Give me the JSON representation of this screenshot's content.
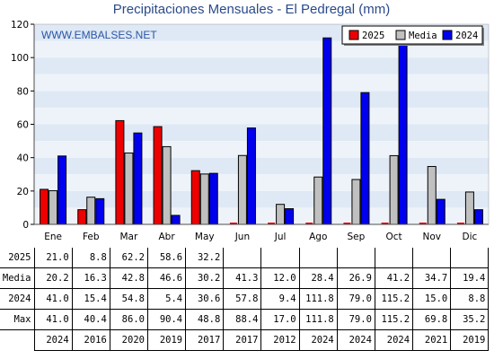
{
  "title": "Precipitaciones Mensuales - El Pedregal (mm)",
  "watermark": "WWW.EMBALSES.NET",
  "chart_data": {
    "type": "bar",
    "categories": [
      "Ene",
      "Feb",
      "Mar",
      "Abr",
      "May",
      "Jun",
      "Jul",
      "Ago",
      "Sep",
      "Oct",
      "Nov",
      "Dic"
    ],
    "ylim": [
      0,
      120
    ],
    "yticks": [
      "0",
      "20",
      "40",
      "60",
      "80",
      "100",
      "120"
    ],
    "grid": "horizontal bands",
    "legend_position": "top-right",
    "series": [
      {
        "name": "2025",
        "color": "#ee0000",
        "values": [
          21.0,
          8.8,
          62.2,
          58.6,
          32.2,
          0,
          0,
          0,
          0,
          0,
          0,
          0
        ]
      },
      {
        "name": "Media",
        "color": "#c0c0c0",
        "values": [
          20.2,
          16.3,
          42.8,
          46.6,
          30.2,
          41.3,
          12.0,
          28.4,
          26.9,
          41.2,
          34.7,
          19.4
        ]
      },
      {
        "name": "2024",
        "color": "#0000ee",
        "values": [
          41.0,
          15.4,
          54.8,
          5.4,
          30.6,
          57.8,
          9.4,
          111.8,
          79.0,
          115.2,
          15.0,
          8.8
        ]
      }
    ]
  },
  "table": {
    "rows": [
      {
        "label": "2025",
        "cells": [
          "21.0",
          "8.8",
          "62.2",
          "58.6",
          "32.2",
          "",
          "",
          "",
          "",
          "",
          "",
          ""
        ]
      },
      {
        "label": "Media",
        "cells": [
          "20.2",
          "16.3",
          "42.8",
          "46.6",
          "30.2",
          "41.3",
          "12.0",
          "28.4",
          "26.9",
          "41.2",
          "34.7",
          "19.4"
        ]
      },
      {
        "label": "2024",
        "cells": [
          "41.0",
          "15.4",
          "54.8",
          "5.4",
          "30.6",
          "57.8",
          "9.4",
          "111.8",
          "79.0",
          "115.2",
          "15.0",
          "8.8"
        ]
      },
      {
        "label": "Max",
        "cells": [
          "41.0",
          "40.4",
          "86.0",
          "90.4",
          "48.8",
          "88.4",
          "17.0",
          "111.8",
          "79.0",
          "115.2",
          "69.8",
          "35.2"
        ]
      },
      {
        "label": "",
        "cells": [
          "2024",
          "2016",
          "2020",
          "2019",
          "2017",
          "2017",
          "2012",
          "2024",
          "2024",
          "2024",
          "2021",
          "2019"
        ]
      }
    ]
  }
}
